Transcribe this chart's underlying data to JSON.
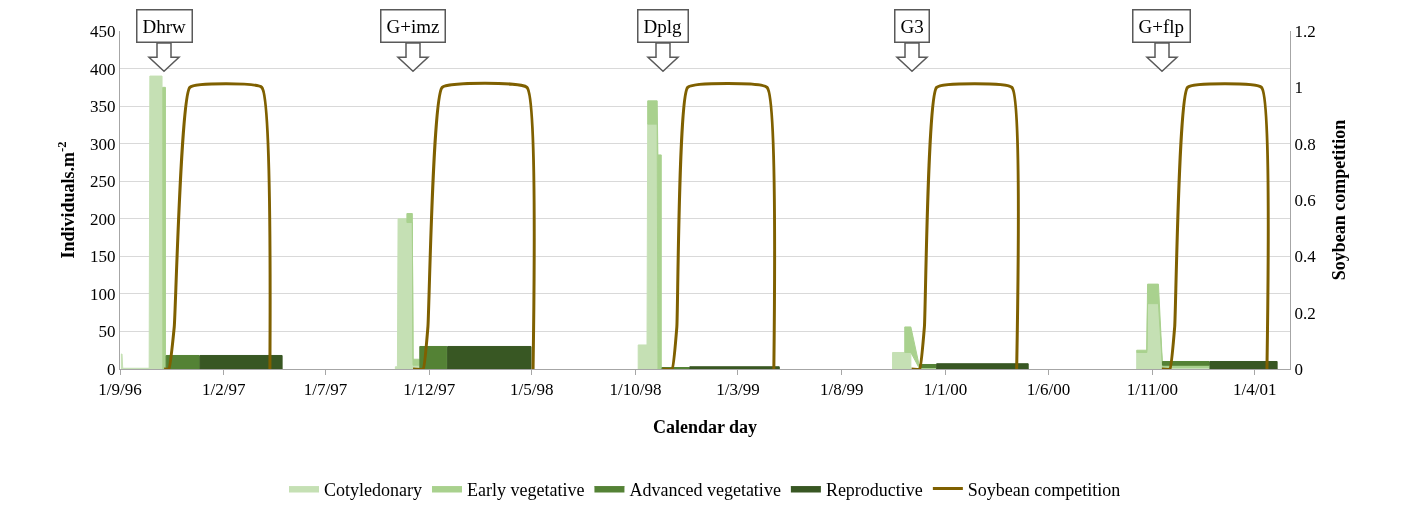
{
  "chart_data": {
    "type": "area",
    "stacked": true,
    "xlabel": "Calendar day",
    "ylabel": "Individuals.m$^{-2}$",
    "y2label": "Soybean competition",
    "x": [
      "1996-09-03",
      "1996-09-04",
      "1996-09-05",
      "1996-10-14",
      "1996-10-15",
      "1996-11-02",
      "1996-11-03",
      "1996-11-07",
      "1996-11-08",
      "1996-12-27",
      "1996-12-28",
      "1997-04-28",
      "1997-10-12",
      "1997-10-15",
      "1997-10-16",
      "1997-10-28",
      "1997-10-29",
      "1997-11-06",
      "1997-11-07",
      "1997-11-16",
      "1997-11-17",
      "1997-12-27",
      "1997-12-28",
      "1998-04-30",
      "1998-10-05",
      "1998-10-18",
      "1998-10-19",
      "1998-11-02",
      "1998-11-03",
      "1998-11-08",
      "1998-11-09",
      "1998-12-19",
      "1998-12-20",
      "1999-05-01",
      "1999-10-15",
      "1999-11-01",
      "1999-11-02",
      "1999-11-11",
      "1999-11-24",
      "1999-12-18",
      "1999-12-19",
      "2000-05-02",
      "2000-10-09",
      "2000-10-24",
      "2000-10-25",
      "2000-11-10",
      "2000-11-16",
      "2001-01-24",
      "2001-01-25",
      "2001-05-04"
    ],
    "series": [
      {
        "name": "Cotyledonary",
        "color": "#c5e0b4",
        "values": [
          20,
          20,
          1,
          1,
          390,
          390,
          null,
          null,
          null,
          null,
          null,
          null,
          3,
          3,
          200,
          200,
          195,
          195,
          5,
          5,
          null,
          null,
          null,
          null,
          32,
          32,
          326,
          326,
          null,
          null,
          null,
          null,
          null,
          null,
          22,
          22,
          22,
          22,
          null,
          null,
          null,
          null,
          22,
          22,
          87,
          87,
          2,
          2,
          null,
          null
        ]
      },
      {
        "name": "Early vegetative",
        "color": "#a9d18e",
        "values": [
          null,
          null,
          null,
          null,
          null,
          null,
          375,
          375,
          null,
          null,
          null,
          null,
          null,
          null,
          null,
          null,
          12,
          12,
          8,
          8,
          null,
          null,
          null,
          null,
          null,
          null,
          31,
          31,
          285,
          285,
          null,
          null,
          null,
          null,
          null,
          null,
          34,
          34,
          2,
          2,
          null,
          null,
          3,
          3,
          26,
          26,
          3,
          3,
          null,
          null
        ]
      },
      {
        "name": "Advanced vegetative",
        "color": "#548235",
        "values": [
          null,
          null,
          null,
          null,
          null,
          null,
          null,
          null,
          18,
          18,
          null,
          null,
          null,
          null,
          null,
          null,
          null,
          null,
          null,
          null,
          30,
          30,
          null,
          null,
          null,
          null,
          null,
          null,
          null,
          null,
          2,
          2,
          null,
          null,
          null,
          null,
          null,
          null,
          4,
          4,
          null,
          null,
          null,
          null,
          null,
          null,
          5,
          5,
          null,
          null
        ]
      },
      {
        "name": "Reproductive",
        "color": "#385723",
        "values": [
          null,
          null,
          null,
          null,
          null,
          null,
          null,
          null,
          null,
          null,
          18,
          18,
          null,
          null,
          null,
          null,
          null,
          null,
          null,
          null,
          null,
          null,
          30,
          30,
          null,
          null,
          null,
          null,
          null,
          null,
          null,
          null,
          3,
          3,
          null,
          null,
          null,
          null,
          null,
          null,
          7,
          7,
          null,
          null,
          null,
          null,
          null,
          null,
          10,
          10
        ]
      },
      {
        "name": "Soybean competition",
        "type": "line",
        "axis": "y2",
        "color": "#7f6000",
        "x": [
          "1996-11-05",
          "1996-11-12",
          "1996-11-20",
          "1996-12-13",
          "1997-03-29",
          "1997-04-10",
          "1997-07-01",
          "1997-11-07",
          "1997-11-22",
          "1997-11-29",
          "1997-12-20",
          "1998-04-24",
          "1998-05-03",
          "1998-08-01",
          "1998-11-10",
          "1998-11-24",
          "1998-12-01",
          "1998-12-17",
          "1999-04-13",
          "1999-04-23",
          "1999-08-01",
          "1999-11-12",
          "1999-11-24",
          "1999-12-01",
          "1999-12-19",
          "2000-04-08",
          "2000-04-15",
          "2000-08-01",
          "2000-11-15",
          "2000-11-27",
          "2000-12-04",
          "2000-12-23",
          "2001-04-11",
          "2001-04-19"
        ],
        "values": [
          0,
          0,
          0.15,
          1,
          1,
          0,
          null,
          0,
          0,
          0.15,
          1,
          1,
          0,
          null,
          0,
          0,
          0.15,
          1,
          1,
          0,
          null,
          0,
          0,
          0.15,
          1,
          1,
          0,
          null,
          0,
          0,
          0.15,
          1,
          1,
          0
        ]
      }
    ],
    "xlim": [
      "1996-09-01",
      "2001-05-23"
    ],
    "xticks": [
      {
        "value": "1996-09-01",
        "label": "1/9/96"
      },
      {
        "value": "1997-02-01",
        "label": "1/2/97"
      },
      {
        "value": "1997-07-01",
        "label": "1/7/97"
      },
      {
        "value": "1997-12-01",
        "label": "1/12/97"
      },
      {
        "value": "1998-05-01",
        "label": "1/5/98"
      },
      {
        "value": "1998-10-01",
        "label": "1/10/98"
      },
      {
        "value": "1999-03-01",
        "label": "1/3/99"
      },
      {
        "value": "1999-08-01",
        "label": "1/8/99"
      },
      {
        "value": "2000-01-01",
        "label": "1/1/00"
      },
      {
        "value": "2000-06-01",
        "label": "1/6/00"
      },
      {
        "value": "2000-11-01",
        "label": "1/11/00"
      },
      {
        "value": "2001-04-01",
        "label": "1/4/01"
      }
    ],
    "ylim": [
      0,
      450
    ],
    "yticks": [
      0,
      50,
      100,
      150,
      200,
      250,
      300,
      350,
      400,
      450
    ],
    "y2lim": [
      0,
      1.2
    ],
    "y2ticks": [
      0,
      0.2,
      0.4,
      0.6,
      0.8,
      1,
      1.2
    ],
    "grid": "y",
    "legend": "bottom",
    "annotations": [
      "Dhrw",
      "G+imz",
      "Dplg",
      "G3",
      "G+flp"
    ]
  }
}
